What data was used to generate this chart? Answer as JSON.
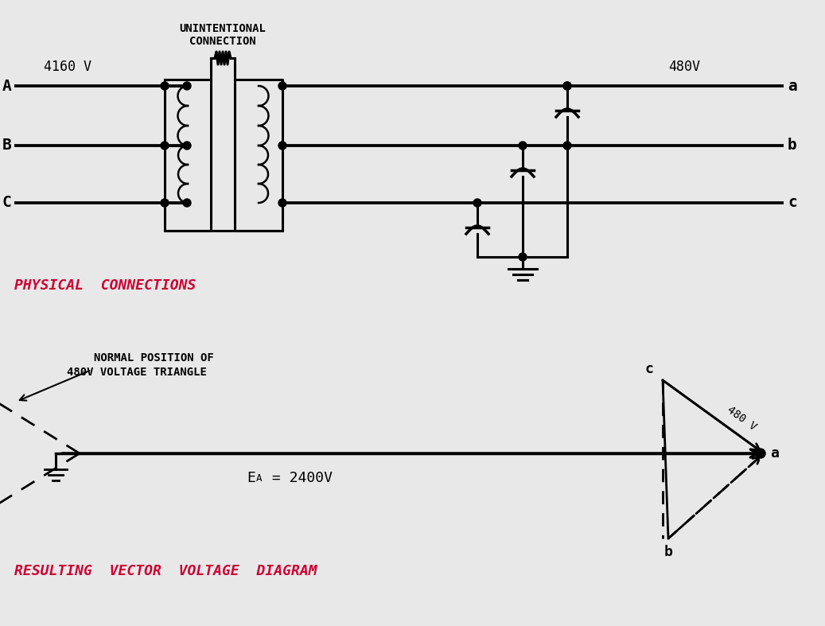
{
  "bg_color": "#e8e8e8",
  "line_color": "#000000",
  "text_color_red": "#cc0033",
  "fig_width": 10.37,
  "fig_height": 7.87,
  "label_A": "A",
  "label_B": "B",
  "label_C": "C",
  "label_a": "a",
  "label_b": "b",
  "label_c": "c",
  "voltage_4160": "4160 V",
  "voltage_480_top": "480V",
  "unintentional_connection": "UNINTENTIONAL\nCONNECTION",
  "physical_connections": "PHYSICAL  CONNECTIONS",
  "normal_position_line1": "NORMAL POSITION OF",
  "normal_position_line2": "480V VOLTAGE TRIANGLE",
  "EA_label_main": "E",
  "EA_label_sub": "A",
  "EA_label_rest": " = 2400V",
  "v480_label": "480 V",
  "resulting_label": "RESULTING  VECTOR  VOLTAGE  DIAGRAM"
}
